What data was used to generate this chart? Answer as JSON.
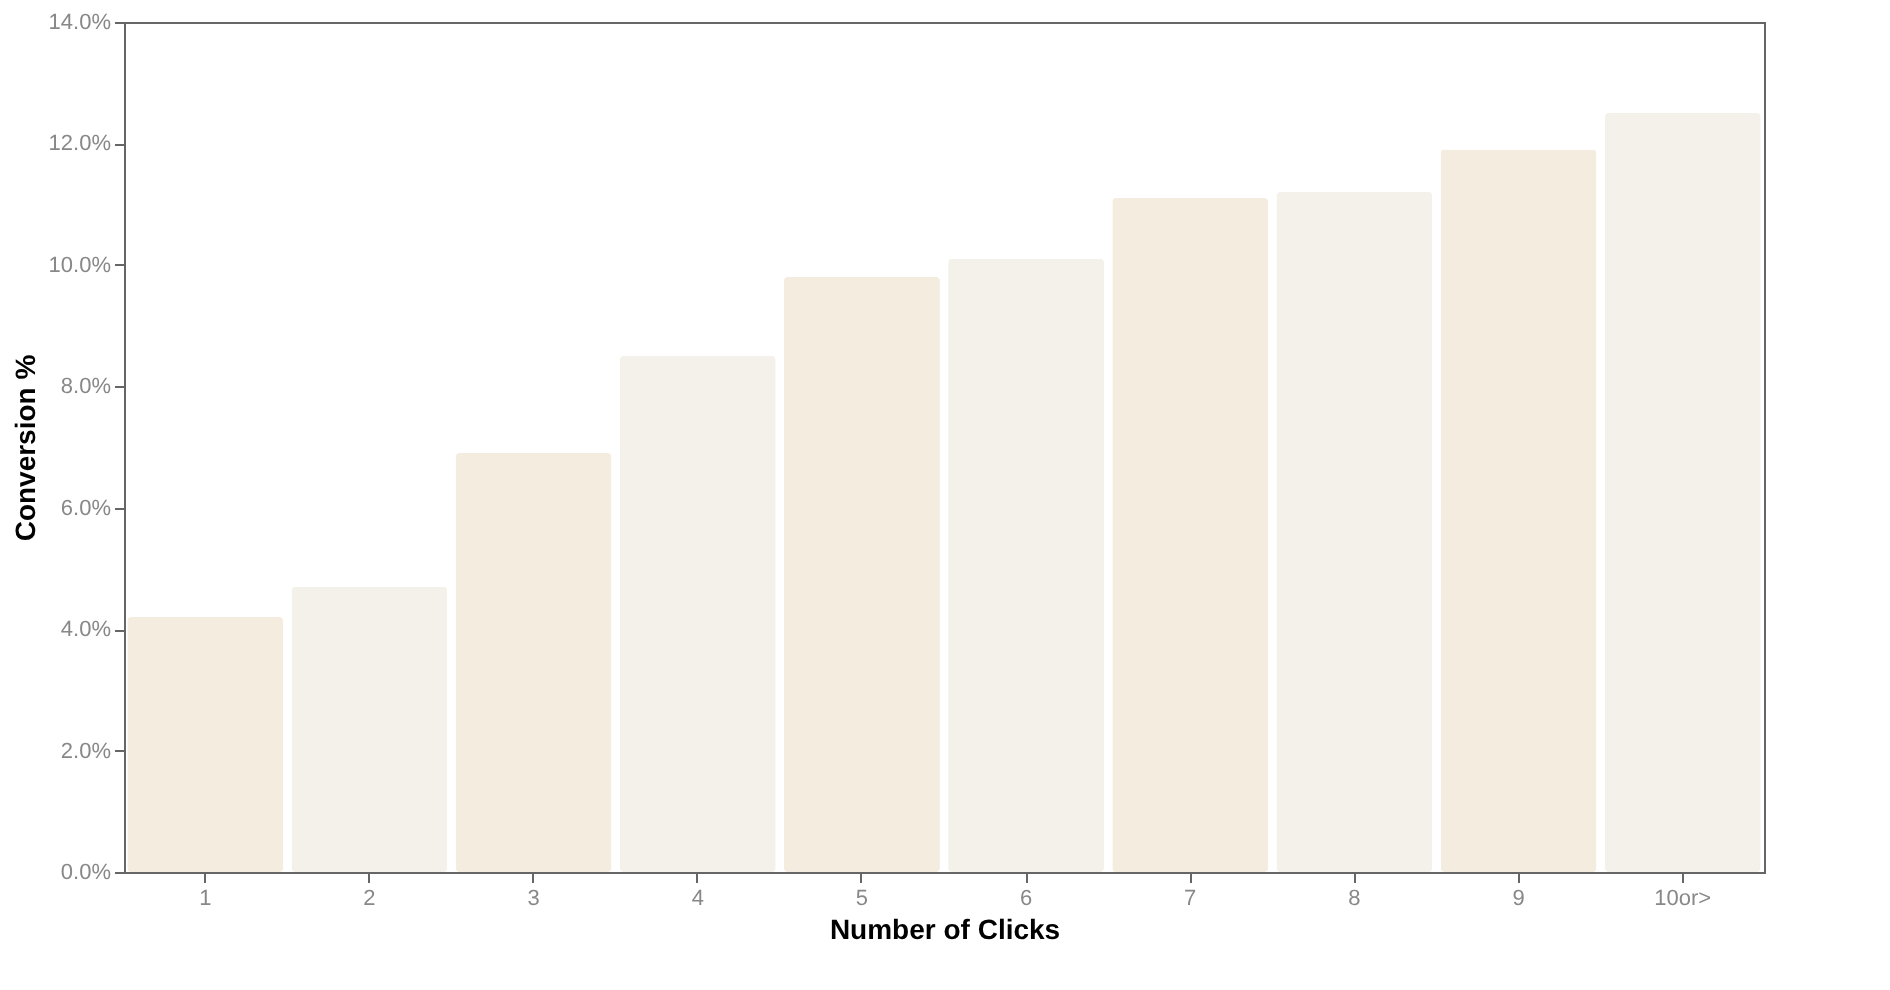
{
  "chart_data": {
    "type": "bar",
    "xlabel": "Number of Clicks",
    "ylabel": "Conversion %",
    "categories": [
      "1",
      "2",
      "3",
      "4",
      "5",
      "6",
      "7",
      "8",
      "9",
      "10or>"
    ],
    "values": [
      4.2,
      4.7,
      6.9,
      8.5,
      9.8,
      10.1,
      11.1,
      11.2,
      11.9,
      12.5
    ],
    "colors": [
      "#f3ecdf",
      "#f3f1ea",
      "#f3ecdf",
      "#f3f1ea",
      "#f3ecdf",
      "#f3f1ea",
      "#f3ecdf",
      "#f3f1ea",
      "#f3ecdf",
      "#f3f1ea"
    ],
    "ylim": [
      0,
      14
    ],
    "yticks": [
      {
        "value": 0,
        "label": "0.0%"
      },
      {
        "value": 2,
        "label": "2.0%"
      },
      {
        "value": 4,
        "label": "4.0%"
      },
      {
        "value": 6,
        "label": "6.0%"
      },
      {
        "value": 8,
        "label": "8.0%"
      },
      {
        "value": 10,
        "label": "10.0%"
      },
      {
        "value": 12,
        "label": "12.0%"
      },
      {
        "value": 14,
        "label": "14.0%"
      }
    ],
    "grid": false
  }
}
